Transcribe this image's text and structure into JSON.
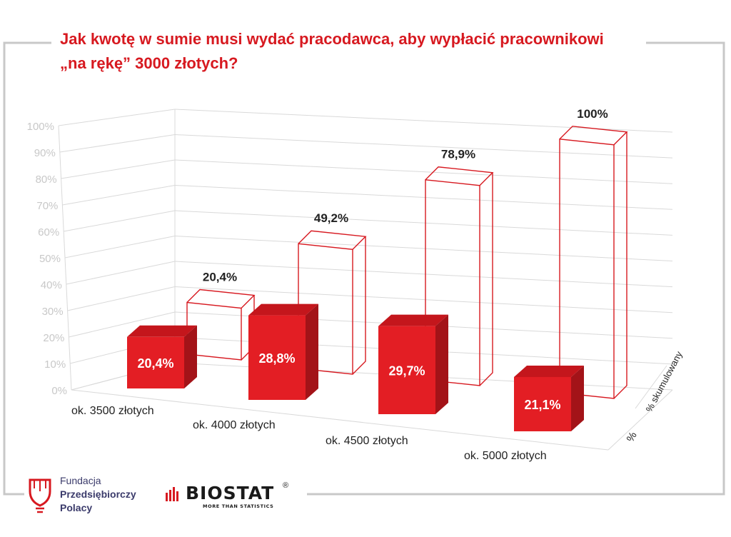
{
  "title": {
    "line1": "Jak kwotę w sumie musi wydać pracodawca, aby wypłacić pracownikowi",
    "line2": "„na rękę” 3000 złotych?"
  },
  "footer": {
    "fundacja": "Fundacja",
    "przedsiebiorczy": "Przedsiębiorczy",
    "polacy": "Polacy",
    "biostat": "BIOSTAT",
    "biostat_reg": "®",
    "biostat_tagline": "MORE THAN STATISTICS"
  },
  "colors": {
    "accent": "#d71920",
    "bar_front": "#e31e24",
    "bar_top": "#c4161c",
    "bar_side": "#a31318",
    "grid": "#d9d9d9",
    "axis_text": "#c8c8c8",
    "label_text": "#222222"
  },
  "chart_data": {
    "type": "bar",
    "style": "3d-clustered",
    "categories": [
      "ok. 3500 złotych",
      "ok. 4000 złotych",
      "ok. 4500 złotych",
      "ok. 5000 złotych"
    ],
    "series": [
      {
        "name": "%",
        "values": [
          20.4,
          28.8,
          29.7,
          21.1
        ],
        "labels": [
          "20,4%",
          "28,8%",
          "29,7%",
          "21,1%"
        ],
        "fill": "solid-red"
      },
      {
        "name": "% skumulowany",
        "values": [
          20.4,
          49.2,
          78.9,
          100
        ],
        "labels": [
          "20,4%",
          "49,2%",
          "78,9%",
          "100%"
        ],
        "fill": "red-outline"
      }
    ],
    "yticks": [
      "0%",
      "10%",
      "20%",
      "30%",
      "40%",
      "50%",
      "60%",
      "70%",
      "80%",
      "90%",
      "100%"
    ],
    "ylim": [
      0,
      100
    ],
    "grid": true,
    "legend": "depth-axis-labels"
  }
}
